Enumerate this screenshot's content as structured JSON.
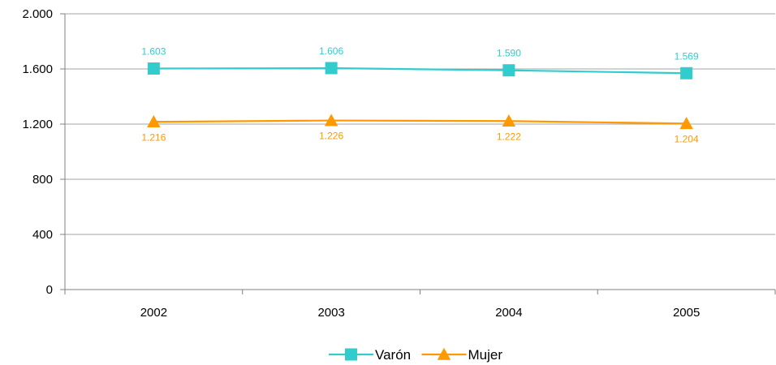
{
  "chart_data": {
    "type": "line",
    "categories": [
      "2002",
      "2003",
      "2004",
      "2005"
    ],
    "series": [
      {
        "name": "Varón",
        "values": [
          1603,
          1606,
          1590,
          1569
        ],
        "labels": [
          "1.603",
          "1.606",
          "1.590",
          "1.569"
        ],
        "color": "#33cccc",
        "marker": "square"
      },
      {
        "name": "Mujer",
        "values": [
          1216,
          1226,
          1222,
          1204
        ],
        "labels": [
          "1.216",
          "1.226",
          "1.222",
          "1.204"
        ],
        "color": "#ff9900",
        "marker": "triangle"
      }
    ],
    "ylim": [
      0,
      2000
    ],
    "yticks": [
      0,
      400,
      800,
      1200,
      1600,
      2000
    ],
    "ytick_labels": [
      "0",
      "400",
      "800",
      "1.200",
      "1.600",
      "2.000"
    ],
    "grid": true,
    "legend_position": "bottom",
    "title": "",
    "xlabel": "",
    "ylabel": ""
  }
}
